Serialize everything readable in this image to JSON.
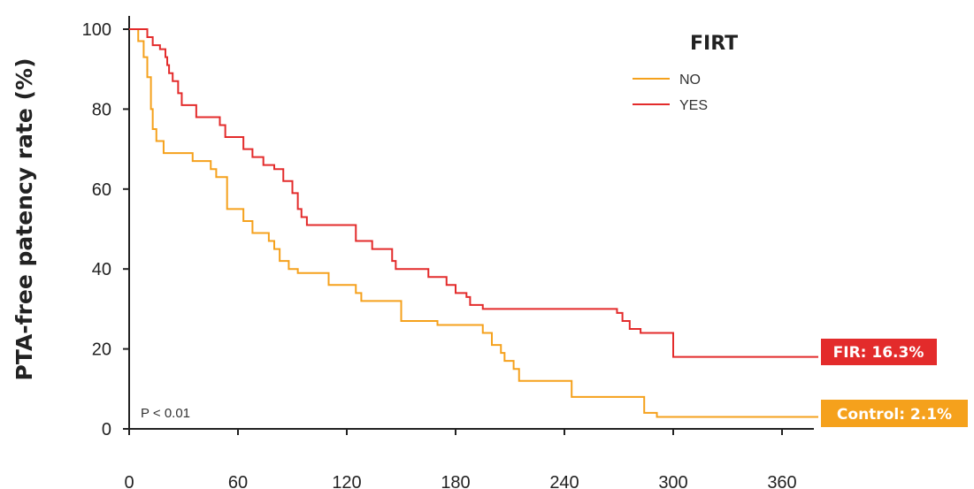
{
  "chart_data": {
    "type": "line",
    "ylabel": "PTA-free patency rate (%)",
    "xlabel": "",
    "xlim": [
      0,
      380
    ],
    "ylim": [
      0,
      100
    ],
    "xticks": [
      0,
      60,
      120,
      180,
      240,
      300,
      360
    ],
    "yticks": [
      0,
      20,
      40,
      60,
      80,
      100
    ],
    "legend": {
      "title": "FIRT",
      "position": "top-right"
    },
    "annotation": "P < 0.01",
    "series": [
      {
        "name": "NO",
        "color": "#f5a11c",
        "steps": [
          [
            0,
            100
          ],
          [
            5,
            97
          ],
          [
            8,
            93
          ],
          [
            10,
            88
          ],
          [
            12,
            80
          ],
          [
            13,
            75
          ],
          [
            15,
            72
          ],
          [
            19,
            69
          ],
          [
            35,
            67
          ],
          [
            45,
            65
          ],
          [
            48,
            63
          ],
          [
            54,
            55
          ],
          [
            63,
            52
          ],
          [
            68,
            49
          ],
          [
            77,
            47
          ],
          [
            80,
            45
          ],
          [
            83,
            42
          ],
          [
            88,
            40
          ],
          [
            93,
            39
          ],
          [
            110,
            36
          ],
          [
            125,
            34
          ],
          [
            128,
            32
          ],
          [
            150,
            27
          ],
          [
            170,
            26
          ],
          [
            195,
            24
          ],
          [
            200,
            21
          ],
          [
            205,
            19
          ],
          [
            207,
            17
          ],
          [
            212,
            15
          ],
          [
            215,
            12
          ],
          [
            244,
            8
          ],
          [
            284,
            4
          ],
          [
            291,
            3
          ],
          [
            380,
            3
          ]
        ]
      },
      {
        "name": "YES",
        "color": "#e32b2b",
        "steps": [
          [
            0,
            100
          ],
          [
            10,
            98
          ],
          [
            13,
            96
          ],
          [
            17,
            95
          ],
          [
            20,
            93
          ],
          [
            21,
            91
          ],
          [
            22,
            89
          ],
          [
            24,
            87
          ],
          [
            27,
            84
          ],
          [
            29,
            81
          ],
          [
            37,
            78
          ],
          [
            50,
            76
          ],
          [
            53,
            73
          ],
          [
            63,
            70
          ],
          [
            68,
            68
          ],
          [
            74,
            66
          ],
          [
            80,
            65
          ],
          [
            85,
            62
          ],
          [
            90,
            59
          ],
          [
            93,
            55
          ],
          [
            95,
            53
          ],
          [
            98,
            51
          ],
          [
            125,
            47
          ],
          [
            134,
            45
          ],
          [
            145,
            42
          ],
          [
            147,
            40
          ],
          [
            165,
            38
          ],
          [
            175,
            36
          ],
          [
            180,
            34
          ],
          [
            186,
            33
          ],
          [
            188,
            31
          ],
          [
            195,
            30
          ],
          [
            269,
            29
          ],
          [
            272,
            27
          ],
          [
            276,
            25
          ],
          [
            282,
            24
          ],
          [
            300,
            18
          ],
          [
            380,
            18
          ]
        ]
      }
    ],
    "badges": [
      {
        "text": "FIR: 16.3%",
        "color": "#e32b2b"
      },
      {
        "text": "Control: 2.1%",
        "color": "#f5a11c"
      }
    ]
  }
}
